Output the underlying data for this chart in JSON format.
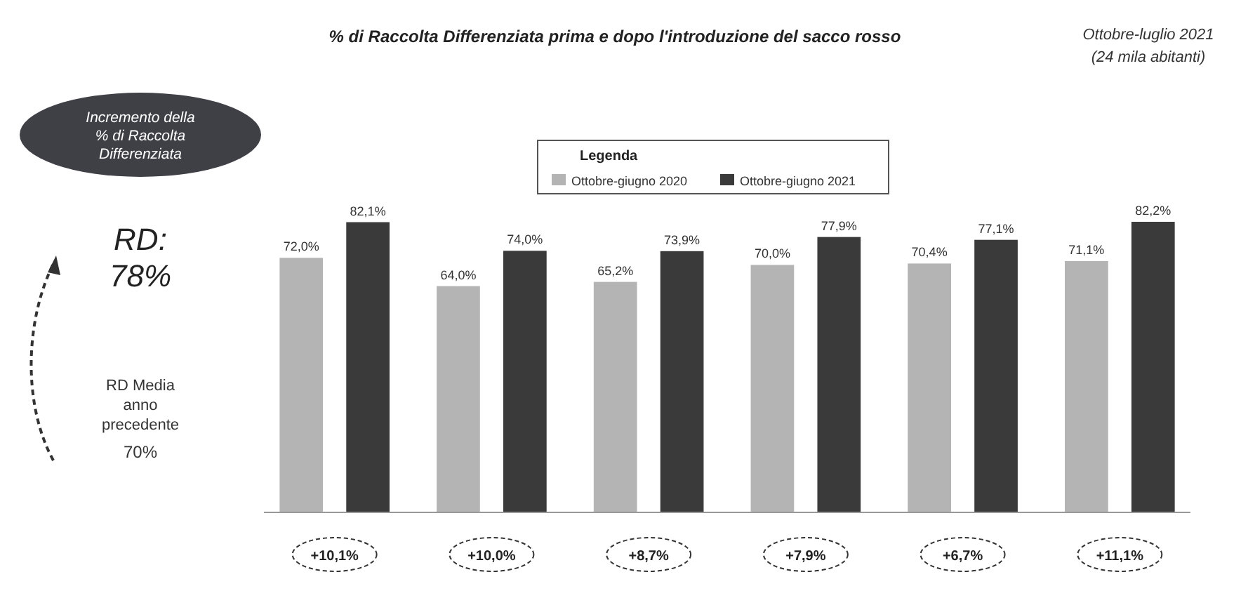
{
  "chart_data": {
    "type": "bar",
    "title": "% di Raccolta Differenziata prima e dopo l'introduzione del sacco rosso",
    "legend_title": "Legenda",
    "legend": "top",
    "categories": [
      null,
      null,
      null,
      null,
      null,
      null
    ],
    "series": [
      {
        "name": "Ottobre-giugno 2020",
        "color": "#b4b4b4",
        "values": [
          72.0,
          64.0,
          65.2,
          70.0,
          70.4,
          71.1
        ],
        "value_labels": [
          "72,0%",
          "64,0%",
          "65,2%",
          "70,0%",
          "70,4%",
          "71,1%"
        ]
      },
      {
        "name": "Ottobre-giugno 2021",
        "color": "#3a3a3a",
        "values": [
          82.1,
          74.0,
          73.9,
          77.9,
          77.1,
          82.2
        ],
        "value_labels": [
          "82,1%",
          "74,0%",
          "73,9%",
          "77,9%",
          "77,1%",
          "82,2%"
        ]
      }
    ],
    "annotations": [
      "Ottobre-luglio 2021 (24 mila abitanti)",
      "Incremento della % di Raccolta Differenziata",
      "RD: 78%",
      "RD Media anno precedente",
      "70%",
      "+10,1%",
      "+10,0%",
      "+8,7%",
      "+7,9%",
      "+6,7%",
      "+11,1%"
    ]
  }
}
